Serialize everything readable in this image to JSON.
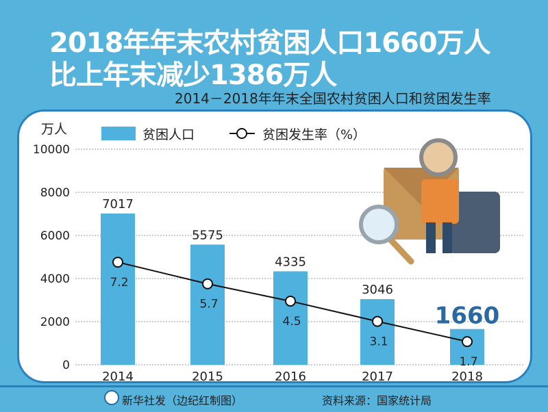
{
  "headline": [
    "2018年年末农村贫困人口1660万人",
    "比上年末减少1386万人"
  ],
  "chart_data": {
    "type": "bar",
    "title": "2014－2018年年末全国农村贫困人口和贫困发生率",
    "ylabel": "万人",
    "ylim": [
      0,
      10000
    ],
    "yticks": [
      "0",
      "2000",
      "4000",
      "6000",
      "8000",
      "10000"
    ],
    "categories": [
      "2014",
      "2015",
      "2016",
      "2017",
      "2018"
    ],
    "series": [
      {
        "name": "贫困人口",
        "type": "bar",
        "values": [
          7017,
          5575,
          4335,
          3046,
          1660
        ],
        "labels": [
          "7017",
          "5575",
          "4335",
          "3046",
          "1660"
        ],
        "color": "#4fb1de"
      },
      {
        "name": "贫困发生率（%）",
        "type": "line",
        "values": [
          7.2,
          5.7,
          4.5,
          3.1,
          1.7
        ],
        "labels": [
          "7.2",
          "5.7",
          "4.5",
          "3.1",
          "1.7"
        ],
        "color": "#111111"
      }
    ],
    "grid": true,
    "legend": "top-left"
  },
  "footer": {
    "credit": "新华社发（边纪红制图）",
    "source": "资料来源：国家统计局"
  }
}
